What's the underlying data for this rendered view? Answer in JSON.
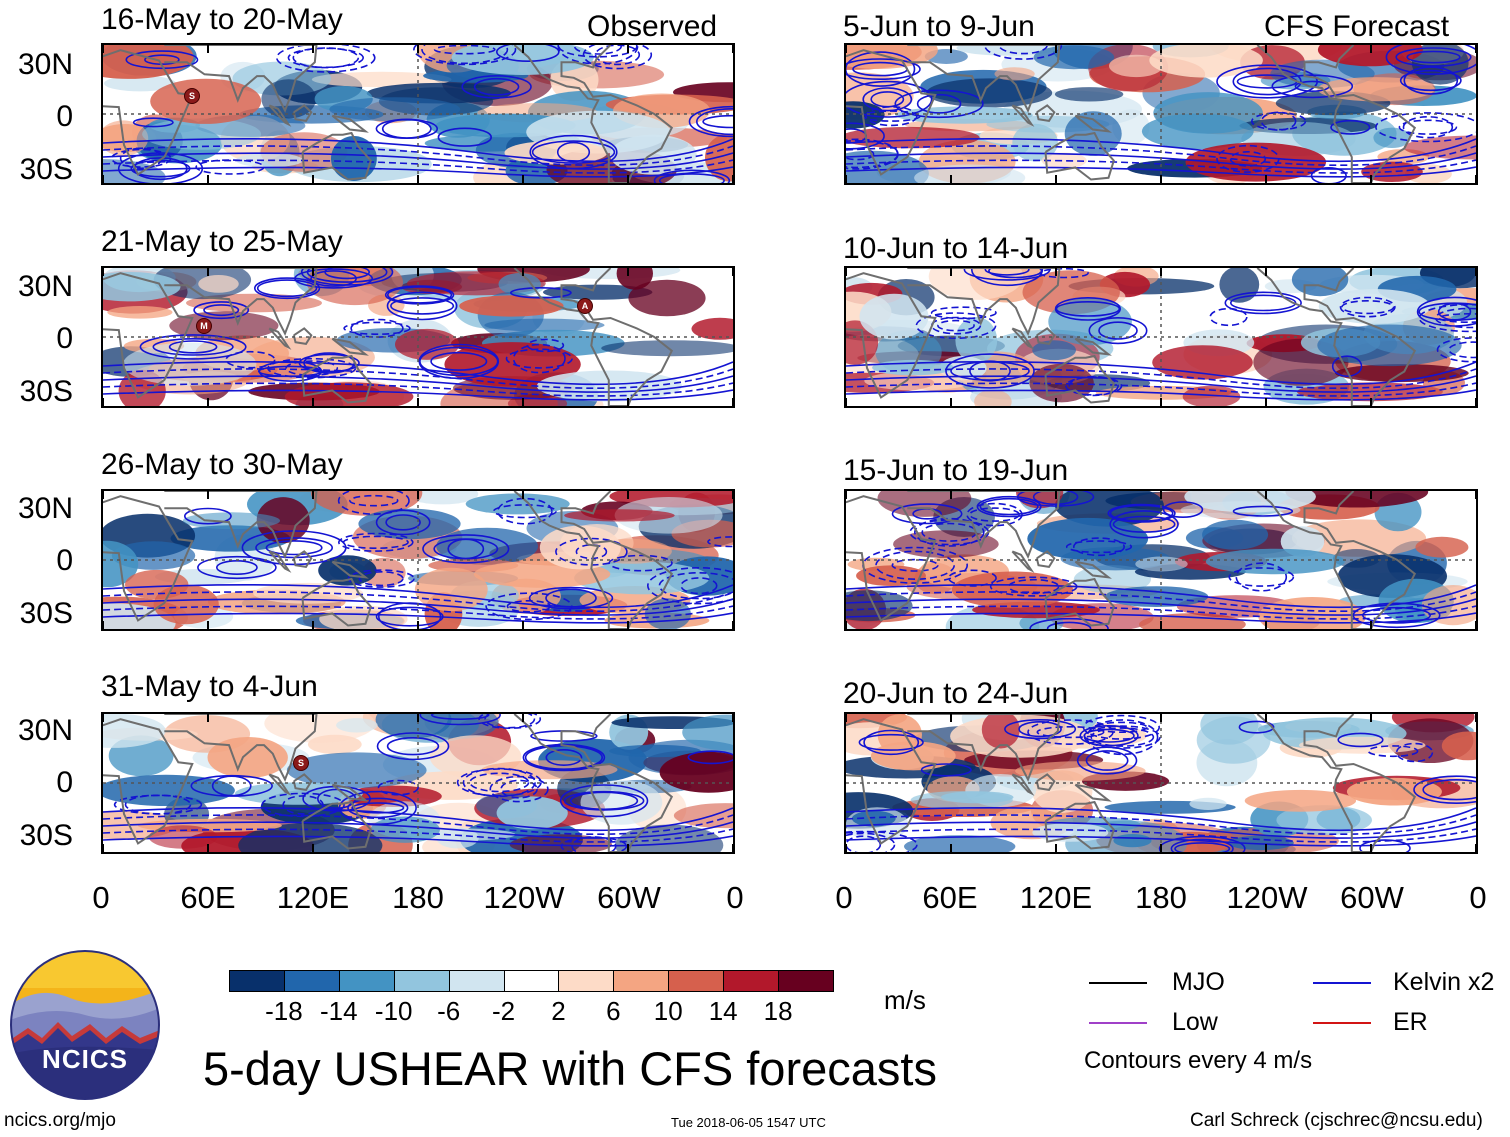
{
  "header": {
    "observed_label": "Observed",
    "forecast_label": "CFS Forecast"
  },
  "panels_left": [
    {
      "title": "16-May to 20-May"
    },
    {
      "title": "21-May to 25-May"
    },
    {
      "title": "26-May to 30-May"
    },
    {
      "title": "31-May to 4-Jun"
    }
  ],
  "panels_right": [
    {
      "title": "5-Jun to 9-Jun"
    },
    {
      "title": "10-Jun to 14-Jun"
    },
    {
      "title": "15-Jun to 19-Jun"
    },
    {
      "title": "20-Jun to 24-Jun"
    }
  ],
  "lat_labels": [
    "30N",
    "0",
    "30S"
  ],
  "lon_labels": [
    "0",
    "60E",
    "120E",
    "180",
    "120W",
    "60W",
    "0"
  ],
  "storm_markers": [
    {
      "panel": "left-0",
      "letter": "S"
    },
    {
      "panel": "left-1",
      "letter": "M"
    },
    {
      "panel": "left-1",
      "letter": "A"
    },
    {
      "panel": "left-3",
      "letter": "S"
    }
  ],
  "colorbar": {
    "colors": [
      "#08306b",
      "#2166ac",
      "#4393c3",
      "#92c5de",
      "#d1e5f0",
      "#ffffff",
      "#fddbc7",
      "#f4a582",
      "#d6604d",
      "#b2182b",
      "#67001f"
    ],
    "labels": [
      "-18",
      "-14",
      "-10",
      "-6",
      "-2",
      "2",
      "6",
      "10",
      "14",
      "18"
    ],
    "unit": "m/s"
  },
  "legend": {
    "mjo": {
      "label": "MJO",
      "color": "#000000"
    },
    "kelvin": {
      "label": "Kelvin x2",
      "color": "#1414d2"
    },
    "low": {
      "label": "Low",
      "color": "#a040c8"
    },
    "er": {
      "label": "ER",
      "color": "#d21414"
    },
    "note": "Contours every 4 m/s"
  },
  "logo": {
    "text": "NCICS"
  },
  "main_title": "5-day USHEAR with CFS forecasts",
  "footer": {
    "url": "ncics.org/mjo",
    "timestamp": "Tue 2018-06-05 1547 UTC",
    "author": "Carl Schreck (cjschrec@ncsu.edu)"
  }
}
